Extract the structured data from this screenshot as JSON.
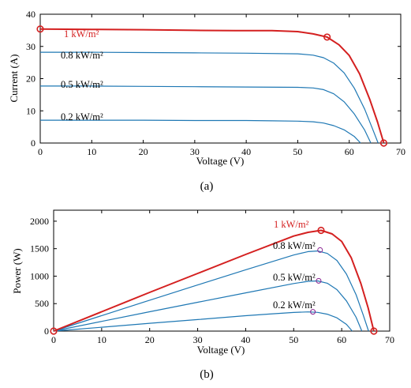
{
  "colors": {
    "highlight": "#d42020",
    "curve": "#1f78b4",
    "axis": "#000000"
  },
  "chart_data": [
    {
      "type": "line",
      "caption": "(a)",
      "xlabel": "Voltage (V)",
      "ylabel": "Current (A)",
      "xlim": [
        0,
        70
      ],
      "ylim": [
        0,
        40
      ],
      "xticks": [
        0,
        10,
        20,
        30,
        40,
        50,
        60,
        70
      ],
      "yticks": [
        0,
        10,
        20,
        30,
        40
      ],
      "grid": false,
      "series": [
        {
          "name": "1 kW/m²",
          "highlight": true,
          "x": [
            0,
            10,
            20,
            30,
            38,
            45,
            50,
            53,
            55.7,
            58,
            60,
            62,
            64,
            65.5,
            66.7
          ],
          "y": [
            35.4,
            35.3,
            35.2,
            35.0,
            34.9,
            34.9,
            34.6,
            33.9,
            32.9,
            30.5,
            27.2,
            21.5,
            13.5,
            6.5,
            0
          ],
          "markers": [
            [
              0,
              35.4
            ],
            [
              55.7,
              32.9
            ],
            [
              66.7,
              0
            ]
          ]
        },
        {
          "name": "0.8 kW/m²",
          "highlight": false,
          "x": [
            0,
            10,
            20,
            30,
            40,
            50,
            53,
            55,
            57,
            59,
            61,
            63,
            64.5,
            65.6
          ],
          "y": [
            28.2,
            28.2,
            28.1,
            28.0,
            27.9,
            27.7,
            27.3,
            26.5,
            24.8,
            21.8,
            17,
            10.5,
            4.5,
            0
          ],
          "markers": []
        },
        {
          "name": "0.5 kW/m²",
          "highlight": false,
          "x": [
            0,
            10,
            20,
            30,
            40,
            50,
            53,
            55,
            57,
            59,
            61,
            63,
            64.2
          ],
          "y": [
            17.7,
            17.7,
            17.6,
            17.5,
            17.4,
            17.3,
            17.1,
            16.6,
            15.3,
            12.8,
            9,
            4,
            0
          ],
          "markers": []
        },
        {
          "name": "0.2 kW/m²",
          "highlight": false,
          "x": [
            0,
            10,
            20,
            30,
            40,
            45,
            50,
            53,
            55,
            57,
            59,
            61,
            62.2
          ],
          "y": [
            7.1,
            7.1,
            7.1,
            7.0,
            7.0,
            6.9,
            6.8,
            6.6,
            6.2,
            5.4,
            4.1,
            2,
            0
          ],
          "markers": []
        }
      ]
    },
    {
      "type": "line",
      "caption": "(b)",
      "xlabel": "Voltage (V)",
      "ylabel": "Power (W)",
      "xlim": [
        0,
        70
      ],
      "ylim": [
        0,
        2200
      ],
      "xticks": [
        0,
        10,
        20,
        30,
        40,
        50,
        60,
        70
      ],
      "yticks": [
        0,
        500,
        1000,
        1500,
        2000
      ],
      "grid": false,
      "series": [
        {
          "name": "1 kW/m²",
          "highlight": true,
          "x": [
            0,
            10,
            20,
            30,
            40,
            50,
            53,
            55.7,
            58,
            60,
            62,
            64,
            65.5,
            66.7
          ],
          "y": [
            0,
            353,
            704,
            1050,
            1395,
            1730,
            1797,
            1833,
            1769,
            1632,
            1333,
            864,
            425,
            0
          ],
          "markers": [
            [
              0,
              0
            ],
            [
              55.7,
              1833
            ],
            [
              66.7,
              0
            ]
          ]
        },
        {
          "name": "0.8 kW/m²",
          "highlight": false,
          "x": [
            0,
            10,
            20,
            30,
            40,
            50,
            53,
            55,
            57,
            59,
            61,
            63,
            64.5,
            65.6
          ],
          "y": [
            0,
            282,
            562,
            840,
            1116,
            1385,
            1447,
            1458,
            1414,
            1286,
            1037,
            662,
            290,
            0
          ],
          "markers": [
            [
              55.5,
              1475
            ]
          ]
        },
        {
          "name": "0.5 kW/m²",
          "highlight": false,
          "x": [
            0,
            10,
            20,
            30,
            40,
            50,
            53,
            55,
            57,
            59,
            61,
            63,
            64.2
          ],
          "y": [
            0,
            177,
            352,
            525,
            696,
            865,
            906,
            913,
            872,
            755,
            549,
            252,
            0
          ],
          "markers": [
            [
              55.2,
              915
            ]
          ]
        },
        {
          "name": "0.2 kW/m²",
          "highlight": false,
          "x": [
            0,
            10,
            20,
            30,
            40,
            45,
            50,
            53,
            55,
            57,
            59,
            61,
            62.2
          ],
          "y": [
            0,
            71,
            142,
            210,
            280,
            311,
            340,
            350,
            341,
            308,
            242,
            122,
            0
          ],
          "markers": [
            [
              54,
              350
            ]
          ]
        }
      ]
    }
  ]
}
